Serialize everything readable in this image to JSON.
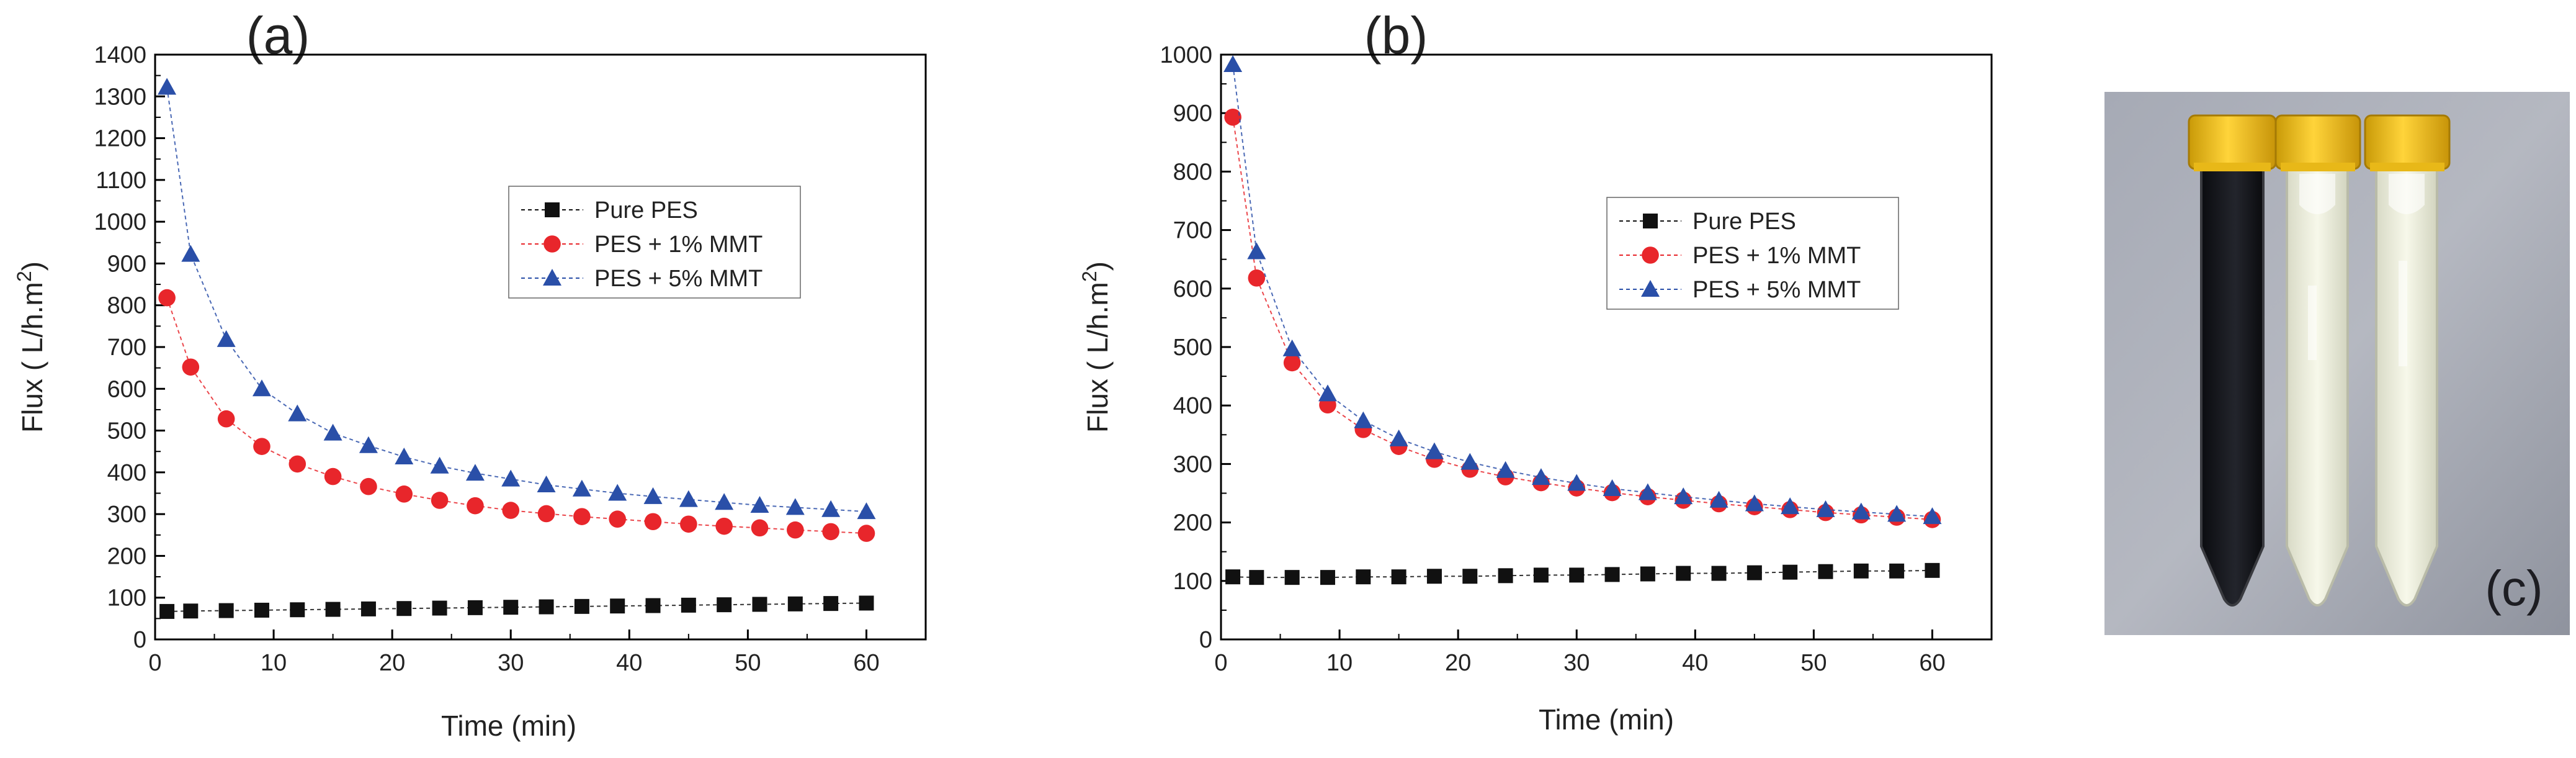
{
  "chart_data": [
    {
      "type": "scatter",
      "panel_label": "(a)",
      "xlabel": "Time (min)",
      "ylabel": "Flux ( L/h.m",
      "ylabel_sup": "2",
      "ylabel_end": ")",
      "xlim": [
        0,
        65
      ],
      "ylim": [
        0,
        1400
      ],
      "x_ticks": [
        0,
        10,
        20,
        30,
        40,
        50,
        60
      ],
      "y_ticks": [
        0,
        100,
        200,
        300,
        400,
        500,
        600,
        700,
        800,
        900,
        1000,
        1100,
        1200,
        1300,
        1400
      ],
      "x": [
        1,
        3,
        6,
        9,
        12,
        15,
        18,
        21,
        24,
        27,
        30,
        33,
        36,
        39,
        42,
        45,
        48,
        51,
        54,
        57,
        60
      ],
      "legend_position": "upper-middle",
      "series": [
        {
          "name": "Pure PES",
          "marker": "square",
          "color": "#111111",
          "values": [
            67,
            68,
            69,
            70,
            71,
            72,
            73,
            74,
            75,
            76,
            77,
            78,
            79,
            80,
            81,
            82,
            83,
            84,
            85,
            86,
            87
          ]
        },
        {
          "name": "PES + 1% MMT",
          "marker": "circle",
          "color": "#e8262b",
          "values": [
            818,
            652,
            528,
            462,
            420,
            390,
            366,
            348,
            333,
            320,
            309,
            301,
            294,
            288,
            282,
            276,
            271,
            267,
            262,
            258,
            254
          ]
        },
        {
          "name": "PES + 5% MMT",
          "marker": "triangle",
          "color": "#2a4fa8",
          "values": [
            1322,
            922,
            718,
            600,
            540,
            494,
            464,
            437,
            415,
            398,
            384,
            370,
            360,
            350,
            342,
            335,
            328,
            321,
            316,
            311,
            306
          ]
        }
      ]
    },
    {
      "type": "scatter",
      "panel_label": "(b)",
      "xlabel": "Time (min)",
      "ylabel": "Flux ( L/h.m",
      "ylabel_sup": "2",
      "ylabel_end": ")",
      "xlim": [
        0,
        65
      ],
      "ylim": [
        0,
        1000
      ],
      "x_ticks": [
        0,
        10,
        20,
        30,
        40,
        50,
        60
      ],
      "y_ticks": [
        0,
        100,
        200,
        300,
        400,
        500,
        600,
        700,
        800,
        900,
        1000
      ],
      "x": [
        1,
        3,
        6,
        9,
        12,
        15,
        18,
        21,
        24,
        27,
        30,
        33,
        36,
        39,
        42,
        45,
        48,
        51,
        54,
        57,
        60
      ],
      "legend_position": "upper-middle",
      "series": [
        {
          "name": "Pure PES",
          "marker": "square",
          "color": "#111111",
          "values": [
            107,
            106,
            106,
            106,
            107,
            107,
            108,
            108,
            109,
            110,
            110,
            111,
            112,
            113,
            113,
            114,
            115,
            116,
            117,
            117,
            118
          ]
        },
        {
          "name": "PES + 1% MMT",
          "marker": "circle",
          "color": "#e8262b",
          "values": [
            893,
            618,
            473,
            401,
            359,
            330,
            308,
            291,
            278,
            268,
            259,
            251,
            244,
            238,
            232,
            227,
            222,
            217,
            213,
            209,
            205
          ]
        },
        {
          "name": "PES + 5% MMT",
          "marker": "triangle",
          "color": "#2a4fa8",
          "values": [
            983,
            663,
            497,
            420,
            374,
            343,
            321,
            303,
            289,
            277,
            267,
            258,
            251,
            244,
            238,
            232,
            227,
            222,
            218,
            214,
            210
          ]
        }
      ]
    }
  ],
  "photo": {
    "panel_label": "(c)",
    "tubes": [
      {
        "contents": "dark dye solution",
        "liquid_color": "#15161a",
        "cap_color": "#f2c21b"
      },
      {
        "contents": "clear permeate",
        "liquid_color": "#eef0dc",
        "cap_color": "#f2c21b"
      },
      {
        "contents": "clear permeate",
        "liquid_color": "#eef0dc",
        "cap_color": "#f2c21b"
      }
    ],
    "background_color": "#9fa3ae"
  }
}
